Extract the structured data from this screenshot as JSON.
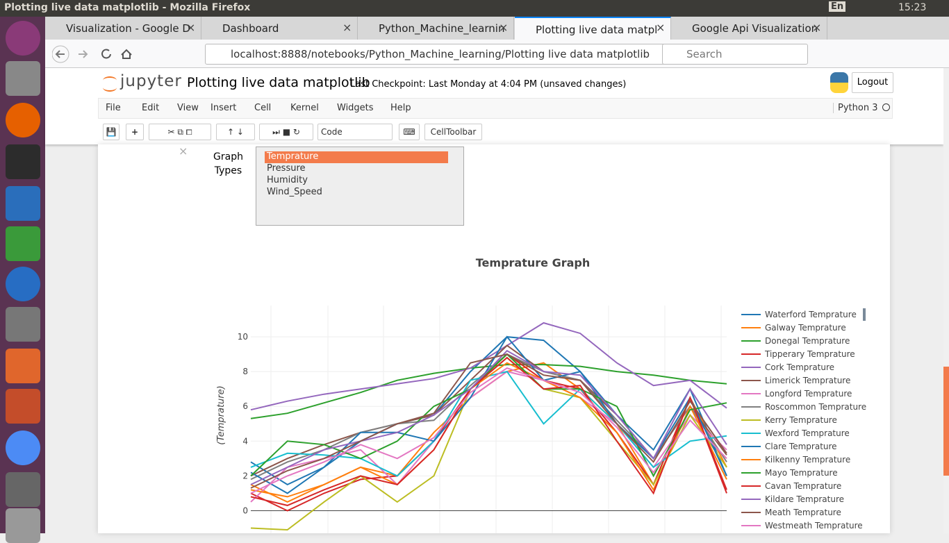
{
  "window_title": "Plotting live data matplotlib - Mozilla Firefox",
  "keyboard": "En",
  "clock": "15:23",
  "tabs": [
    "Visualization - Google D",
    "Dashboard",
    "Python_Machine_learnin",
    "Plotting live data matpl",
    "Google Api Visualization"
  ],
  "active_tab": 3,
  "url": "localhost:8888/notebooks/Python_Machine_learning/Plotting live data matplotlib",
  "search": "Search",
  "notebook": {
    "logo": "jupyter",
    "name": "Plotting live data matplotlib",
    "checkpoint": "Last Checkpoint: Last Monday at 4:04 PM (unsaved changes)",
    "logout": "Logout",
    "kernel": "Python 3",
    "menu": [
      "File",
      "Edit",
      "View",
      "Insert",
      "Cell",
      "Kernel",
      "Widgets",
      "Help"
    ],
    "cell_type": "Code",
    "celltoolbar": "CellToolbar"
  },
  "widget": {
    "label": "Graph Types",
    "options": [
      "Temprature",
      "Pressure",
      "Humidity",
      "Wind_Speed"
    ],
    "selected": 0
  },
  "chart_data": {
    "type": "line",
    "title": "Temprature Graph",
    "y_label": "(Temprature)",
    "categories": [
      null,
      null,
      null,
      null,
      null,
      null,
      null,
      null,
      null,
      null,
      null,
      null,
      null,
      null
    ],
    "ylim": [
      -1.3,
      11.8
    ],
    "yticks": [
      0,
      2,
      4,
      6,
      8,
      10
    ],
    "grid": true,
    "series": [
      {
        "name": "Waterford Temprature",
        "color": "#1f77b4",
        "values": [
          2.8,
          1.5,
          2.5,
          4.0,
          5.0,
          5.5,
          8.0,
          10.0,
          9.8,
          8.0,
          5.5,
          3.5,
          7.0,
          2.0
        ]
      },
      {
        "name": "Galway Temprature",
        "color": "#ff7f0e",
        "values": [
          1.5,
          0.5,
          1.5,
          2.5,
          2.0,
          4.5,
          6.5,
          8.0,
          8.5,
          7.0,
          5.0,
          1.5,
          6.5,
          2.5
        ]
      },
      {
        "name": "Donegal Temprature",
        "color": "#2ca02c",
        "values": [
          5.3,
          5.6,
          6.2,
          6.8,
          7.5,
          7.9,
          8.2,
          8.4,
          8.4,
          8.3,
          8.0,
          7.8,
          7.5,
          7.3
        ]
      },
      {
        "name": "Tipperary Temprature",
        "color": "#d62728",
        "values": [
          1.0,
          0.0,
          1.0,
          1.8,
          2.0,
          4.0,
          7.0,
          9.0,
          7.5,
          7.0,
          4.5,
          1.5,
          6.5,
          1.0
        ]
      },
      {
        "name": "Cork Temprature",
        "color": "#9467bd",
        "values": [
          5.8,
          6.3,
          6.7,
          7.0,
          7.3,
          7.6,
          8.2,
          9.5,
          10.8,
          10.2,
          8.5,
          7.2,
          7.5,
          5.9
        ]
      },
      {
        "name": "Limerick Temprature",
        "color": "#8c564b",
        "values": [
          2.0,
          3.0,
          3.8,
          4.5,
          5.0,
          5.5,
          7.5,
          9.5,
          8.0,
          7.5,
          5.5,
          3.0,
          6.0,
          3.2
        ]
      },
      {
        "name": "Longford Temprature",
        "color": "#e377c2",
        "values": [
          0.5,
          2.5,
          3.0,
          3.5,
          1.5,
          4.0,
          6.5,
          8.0,
          7.5,
          6.5,
          5.0,
          2.5,
          5.5,
          3.5
        ]
      },
      {
        "name": "Roscommon Temprature",
        "color": "#7f7f7f",
        "values": [
          1.8,
          2.8,
          3.5,
          4.5,
          5.0,
          5.2,
          7.2,
          9.0,
          8.0,
          7.5,
          5.2,
          3.0,
          6.0,
          2.8
        ]
      },
      {
        "name": "Kerry Temprature",
        "color": "#bcbd22",
        "values": [
          -1.0,
          -1.1,
          0.5,
          2.0,
          0.5,
          2.0,
          7.0,
          8.8,
          7.0,
          6.5,
          4.0,
          1.5,
          5.5,
          2.5
        ]
      },
      {
        "name": "Wexford Temprature",
        "color": "#17becf",
        "values": [
          2.5,
          3.3,
          3.2,
          3.0,
          2.0,
          4.0,
          7.5,
          8.0,
          5.0,
          7.0,
          5.0,
          2.5,
          4.0,
          4.3
        ]
      },
      {
        "name": "Clare Temprature",
        "color": "#1f77b4",
        "values": [
          2.2,
          1.0,
          2.5,
          4.5,
          4.5,
          4.0,
          6.5,
          10.0,
          7.5,
          8.0,
          5.0,
          3.0,
          6.5,
          2.0
        ]
      },
      {
        "name": "Kilkenny Temprature",
        "color": "#ff7f0e",
        "values": [
          1.2,
          0.8,
          1.5,
          2.5,
          1.5,
          3.5,
          7.0,
          8.5,
          7.5,
          6.5,
          4.5,
          1.2,
          6.0,
          1.8
        ]
      },
      {
        "name": "Mayo Temprature",
        "color": "#2ca02c",
        "values": [
          2.0,
          4.0,
          3.8,
          3.0,
          4.0,
          6.0,
          7.0,
          9.0,
          7.0,
          7.0,
          6.0,
          2.0,
          5.8,
          6.2
        ]
      },
      {
        "name": "Cavan Temprature",
        "color": "#d62728",
        "values": [
          0.8,
          0.3,
          1.2,
          2.0,
          1.5,
          3.5,
          7.0,
          8.8,
          7.0,
          7.2,
          4.0,
          1.0,
          6.5,
          1.2
        ]
      },
      {
        "name": "Kildare Temprature",
        "color": "#9467bd",
        "values": [
          1.5,
          2.5,
          3.5,
          4.0,
          4.5,
          5.5,
          7.0,
          9.2,
          8.0,
          7.8,
          5.5,
          3.0,
          7.0,
          3.8
        ]
      },
      {
        "name": "Meath Temprature",
        "color": "#8c564b",
        "values": [
          1.3,
          2.3,
          3.0,
          4.0,
          5.0,
          5.6,
          8.5,
          9.0,
          7.8,
          7.5,
          5.0,
          2.8,
          6.3,
          3.3
        ]
      },
      {
        "name": "Westmeath Temprature",
        "color": "#e377c2",
        "values": [
          1.0,
          2.0,
          2.8,
          3.8,
          3.0,
          4.2,
          6.8,
          8.2,
          7.5,
          6.8,
          4.8,
          2.2,
          5.2,
          3.0
        ]
      }
    ]
  }
}
